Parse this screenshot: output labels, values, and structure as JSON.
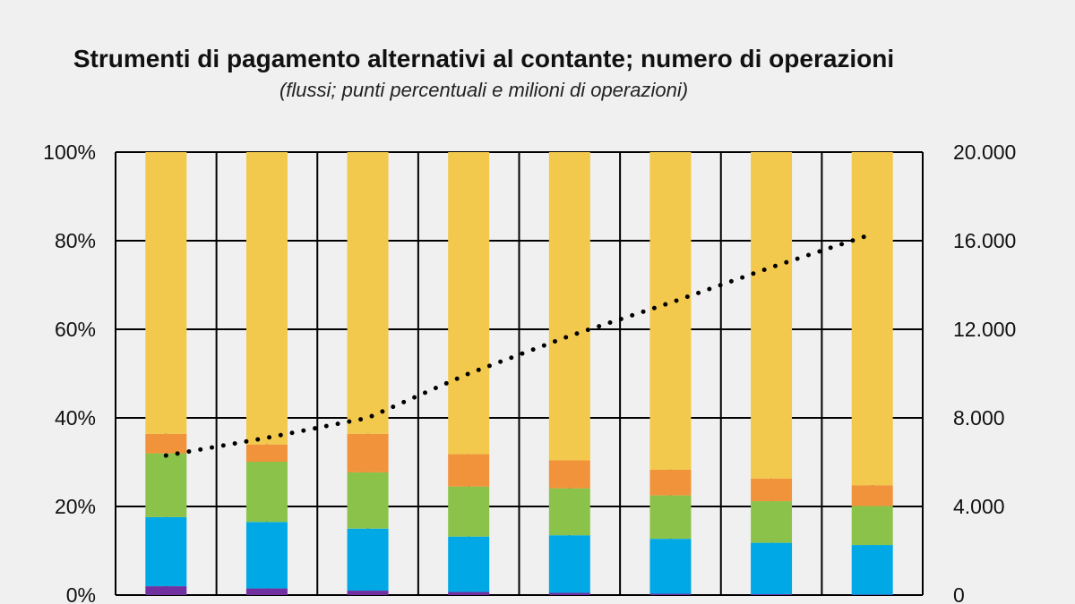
{
  "chart_data": {
    "type": "bar",
    "stacked": true,
    "title": "Strumenti di pagamento alternativi al contante; numero di operazioni",
    "subtitle": "(flussi; punti percentuali e milioni di operazioni)",
    "categories": [
      "",
      "",
      "",
      "",
      "",
      "",
      "",
      ""
    ],
    "y_left": {
      "ticks": [
        "0%",
        "20%",
        "40%",
        "60%",
        "80%",
        "100%"
      ],
      "range": [
        0,
        100
      ]
    },
    "y_right": {
      "ticks": [
        "0",
        "4.000",
        "8.000",
        "12.000",
        "16.000",
        "20.000"
      ],
      "range": [
        0,
        20000
      ]
    },
    "grid": true,
    "series": [
      {
        "color": "#7030a0",
        "values": [
          2,
          1.5,
          1,
          0.7,
          0.5,
          0.3,
          0.2,
          0.1
        ]
      },
      {
        "color": "#00a9e6",
        "values": [
          15.6,
          15,
          14,
          12.5,
          13,
          12.4,
          11.6,
          11.2
        ]
      },
      {
        "color": "#8bc34a",
        "values": [
          14.4,
          13.6,
          12.7,
          11.3,
          10.6,
          9.8,
          9.4,
          8.8
        ]
      },
      {
        "color": "#f0933a",
        "values": [
          4.4,
          3.9,
          8.7,
          7.3,
          6.3,
          5.8,
          5.1,
          4.7
        ]
      },
      {
        "color": "#f2c94c",
        "values": [
          63.6,
          66,
          63.6,
          68.2,
          69.6,
          71.7,
          73.7,
          75.2
        ]
      }
    ],
    "line_series": {
      "style": "dotted",
      "color": "#000000",
      "axis": "right",
      "values": [
        6300,
        7100,
        8000,
        10000,
        11700,
        13200,
        14800,
        16300
      ]
    }
  }
}
